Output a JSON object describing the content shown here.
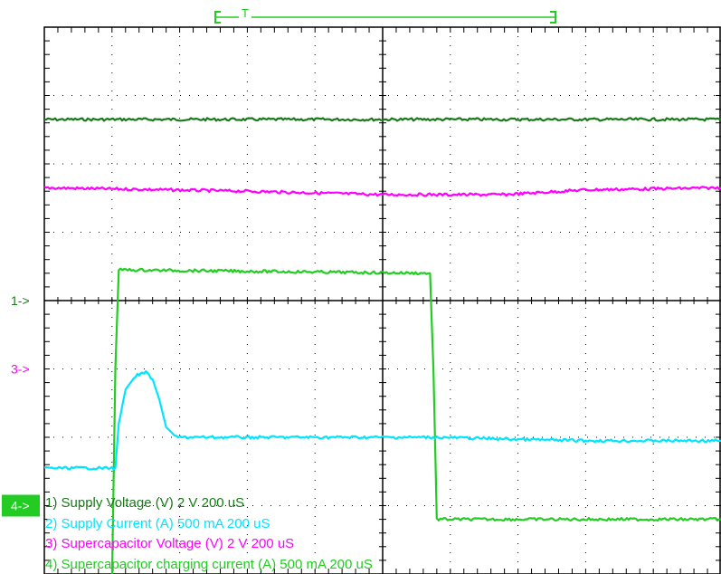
{
  "chart_data": {
    "type": "line",
    "title": "",
    "xlabel": "",
    "ylabel": "",
    "grid": true,
    "divisions": {
      "x": 10,
      "y": 8
    },
    "xlim": [
      0,
      10
    ],
    "ylim": [
      -4,
      4
    ],
    "time_per_div": "200 uS",
    "trigger_marker": "T",
    "channel_markers": [
      {
        "label": "1->",
        "channel": 1,
        "color": "#1a7a1a",
        "level": 0
      },
      {
        "label": "3->",
        "channel": 3,
        "color": "#ff00ff",
        "level": -1
      },
      {
        "label": "4->",
        "channel": 4,
        "color": "#22cc22",
        "level": -3,
        "boxed": true
      }
    ],
    "legend": {
      "position": "bottom-left",
      "entries": [
        {
          "channel": 1,
          "text": "1) Supply Voltage (V) 2  V   200 uS",
          "color": "#1a7a1a"
        },
        {
          "channel": 2,
          "text": "2) Supply Current (A)  500 mA   200 uS",
          "color": "#00e5ff"
        },
        {
          "channel": 3,
          "text": "3) Supercapacitor Voltage (V)  2  V   200 uS",
          "color": "#ff00ff"
        },
        {
          "channel": 4,
          "text": "4) Supercapacitor charging current (A) 500 mA   200 uS",
          "color": "#22cc22"
        }
      ]
    },
    "series": [
      {
        "channel": 1,
        "color": "#1a7a1a",
        "x": [
          0,
          10
        ],
        "y": [
          2.65,
          2.65
        ]
      },
      {
        "channel": 3,
        "color": "#ff00ff",
        "x": [
          0,
          3,
          5,
          6.8,
          8,
          10
        ],
        "y": [
          1.65,
          1.6,
          1.55,
          1.55,
          1.62,
          1.65
        ]
      },
      {
        "channel": 4,
        "color": "#22cc22",
        "x": [
          0,
          1.0,
          1.05,
          1.1,
          5.7,
          5.75,
          5.8,
          10
        ],
        "y": [
          -4.1,
          -4.1,
          -1.0,
          0.45,
          0.4,
          -1.0,
          -3.2,
          -3.2
        ]
      },
      {
        "channel": 2,
        "color": "#00e5ff",
        "x": [
          0,
          1.05,
          1.1,
          1.2,
          1.35,
          1.5,
          1.6,
          1.7,
          1.8,
          1.95,
          5.8,
          7,
          8,
          9,
          10
        ],
        "y": [
          -2.45,
          -2.45,
          -1.8,
          -1.3,
          -1.1,
          -1.05,
          -1.15,
          -1.45,
          -1.85,
          -2.0,
          -2.0,
          -2.03,
          -2.05,
          -2.05,
          -2.05
        ]
      }
    ]
  }
}
